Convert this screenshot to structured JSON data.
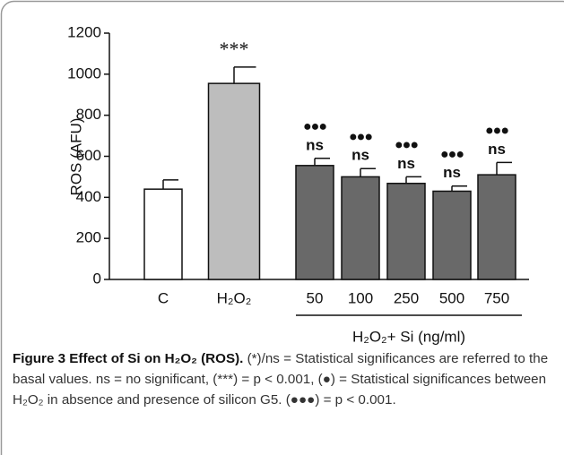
{
  "chart_data": {
    "type": "bar",
    "y_label": "ROS (AFU)",
    "categories": [
      "C",
      "H₂O₂",
      "50",
      "100",
      "250",
      "500",
      "750"
    ],
    "values": [
      440,
      955,
      555,
      500,
      468,
      430,
      510
    ],
    "errors": [
      45,
      80,
      35,
      40,
      32,
      25,
      60
    ],
    "colors": [
      "#ffffff",
      "#bdbdbd",
      "#696969",
      "#696969",
      "#696969",
      "#696969",
      "#696969"
    ],
    "significance": [
      null,
      "***",
      "ns",
      "ns",
      "ns",
      "ns",
      "ns"
    ],
    "markers": [
      null,
      null,
      "●●●",
      "●●●",
      "●●●",
      "●●●",
      "●●●"
    ],
    "group_label": "H₂O₂+ Si (ng/ml)",
    "ylim": [
      0,
      1200
    ],
    "yticks": [
      0,
      200,
      400,
      600,
      800,
      1000,
      1200
    ]
  },
  "caption": {
    "title": "Figure 3 Effect of Si on H₂O₂ (ROS).",
    "text": "(*)/ns = Statistical significances are referred to the basal values. ns = no significant, (***) = p < 0.001, (●) = Statistical significances between H₂O₂ in absence and presence of silicon G5. (●●●) = p < 0.001."
  }
}
